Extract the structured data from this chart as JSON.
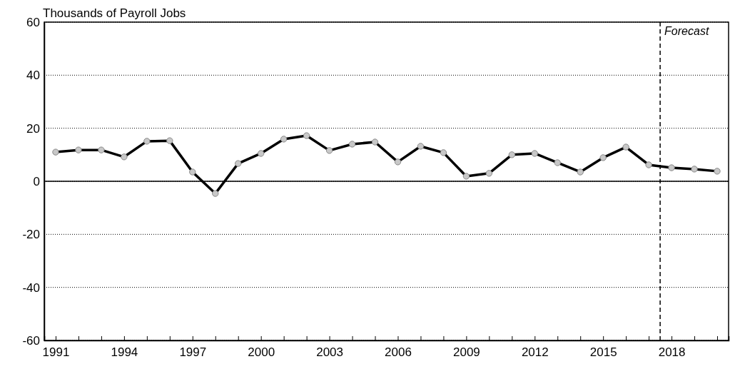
{
  "chart_data": {
    "type": "line",
    "ylabel": "Thousands of Payroll Jobs",
    "x": [
      1991,
      1992,
      1993,
      1994,
      1995,
      1996,
      1997,
      1998,
      1999,
      2000,
      2001,
      2002,
      2003,
      2004,
      2005,
      2006,
      2007,
      2008,
      2009,
      2010,
      2011,
      2012,
      2013,
      2014,
      2015,
      2016,
      2017,
      2018,
      2019,
      2020
    ],
    "series": [
      {
        "color": "#000000",
        "values": [
          11.0,
          11.8,
          11.8,
          9.2,
          15.1,
          15.3,
          3.5,
          -4.6,
          6.7,
          10.5,
          15.9,
          17.2,
          11.6,
          14.0,
          14.8,
          7.3,
          13.2,
          10.8,
          1.9,
          3.0,
          10.0,
          10.5,
          7.0,
          3.5,
          8.9,
          12.9,
          6.2,
          5.1,
          4.6,
          3.8
        ]
      }
    ],
    "xlim": [
      1990.5,
      2020.5
    ],
    "xticks": [
      1991,
      {
        "value": 1992,
        "label": null
      },
      {
        "value": 1993,
        "label": null
      },
      1994,
      {
        "value": 1995,
        "label": null
      },
      {
        "value": 1996,
        "label": null
      },
      1997,
      {
        "value": 1998,
        "label": null
      },
      {
        "value": 1999,
        "label": null
      },
      2000,
      {
        "value": 2001,
        "label": null
      },
      {
        "value": 2002,
        "label": null
      },
      2003,
      {
        "value": 2004,
        "label": null
      },
      {
        "value": 2005,
        "label": null
      },
      2006,
      {
        "value": 2007,
        "label": null
      },
      {
        "value": 2008,
        "label": null
      },
      2009,
      {
        "value": 2010,
        "label": null
      },
      {
        "value": 2011,
        "label": null
      },
      2012,
      {
        "value": 2013,
        "label": null
      },
      {
        "value": 2014,
        "label": null
      },
      2015,
      {
        "value": 2016,
        "label": null
      },
      {
        "value": 2017,
        "label": null
      },
      2018,
      {
        "value": 2019,
        "label": null
      },
      {
        "value": 2020,
        "label": null
      }
    ],
    "ylim": [
      -60,
      60
    ],
    "yticks": [
      -60,
      -40,
      -20,
      0,
      20,
      40,
      60
    ],
    "grid": "y",
    "marker": "circle",
    "line_style": "solid",
    "ref_lines": [
      {
        "axis": "y",
        "value": 0,
        "label": null,
        "line_style": "solid",
        "color": "#000000"
      },
      {
        "axis": "x",
        "value": 2017.5,
        "label": "Forecast",
        "line_style": "dashed",
        "color": "#000000"
      }
    ]
  }
}
